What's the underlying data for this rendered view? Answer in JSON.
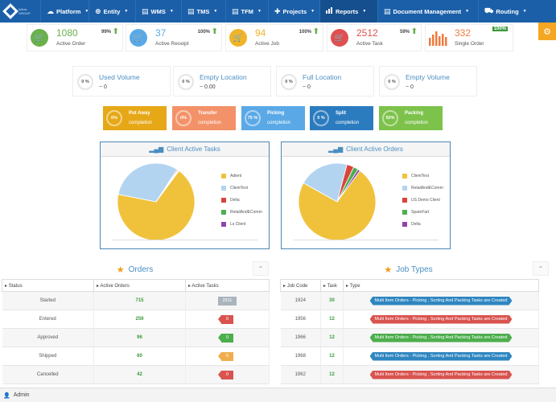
{
  "brand": {
    "line1": "Inflow",
    "line2": "GROUP"
  },
  "nav": [
    {
      "label": "Platform",
      "icon": "cloud-icon",
      "glyph": "☁"
    },
    {
      "label": "Entity",
      "icon": "globe-icon",
      "glyph": "⊕"
    },
    {
      "label": "WMS",
      "icon": "document-icon",
      "glyph": "▤"
    },
    {
      "label": "TMS",
      "icon": "document-icon",
      "glyph": "▤"
    },
    {
      "label": "TFM",
      "icon": "document-icon",
      "glyph": "▤"
    },
    {
      "label": "Projects",
      "icon": "plus-icon",
      "glyph": "✚"
    },
    {
      "label": "Reports",
      "icon": "chart-icon",
      "glyph": ""
    },
    {
      "label": "Document Management",
      "icon": "document-icon",
      "glyph": "▤"
    },
    {
      "label": "Routing",
      "icon": "road-icon",
      "glyph": "⛟"
    }
  ],
  "stats": [
    {
      "value": "1080",
      "label": "Active Order",
      "pct": "99%",
      "color": "#6ab04c"
    },
    {
      "value": "37",
      "label": "Active Receipt",
      "pct": "100%",
      "color": "#5aa9e6"
    },
    {
      "value": "94",
      "label": "Active Job",
      "pct": "100%",
      "color": "#f0b429"
    },
    {
      "value": "2512",
      "label": "Active Task",
      "pct": "59%",
      "color": "#e05050"
    },
    {
      "value": "332",
      "label": "Single Order",
      "pct": "100%",
      "color": "#f07b3f"
    }
  ],
  "volumes": [
    {
      "title": "Used Volume",
      "value": "~ 0",
      "pct": "0 %"
    },
    {
      "title": "Empty Location",
      "value": "~ 0.00",
      "pct": "0 %"
    },
    {
      "title": "Full Location",
      "value": "~ 0",
      "pct": "0 %"
    },
    {
      "title": "Empty Volume",
      "value": "~ 0",
      "pct": "0 %"
    }
  ],
  "tasks": [
    {
      "l1": "Put Away",
      "l2": "completion",
      "pct": "0%",
      "color": "#e6a817"
    },
    {
      "l1": "Transfer",
      "l2": "completion",
      "pct": "0%",
      "color": "#f39268"
    },
    {
      "l1": "Picking",
      "l2": "completion",
      "pct": "75 %",
      "color": "#5aa9e6"
    },
    {
      "l1": "Split",
      "l2": "completion",
      "pct": "0 %",
      "color": "#2b7bbf"
    },
    {
      "l1": "Packing",
      "l2": "completion",
      "pct": "50%",
      "color": "#7dc24b"
    }
  ],
  "charts": {
    "tasks_title": "Client Active Tasks",
    "orders_title": "Client Active Orders"
  },
  "chart_data": [
    {
      "type": "pie",
      "title": "Client Active Tasks",
      "legend": "right",
      "labels": [
        "Adient",
        "ClientTest",
        "Delta",
        "RetailAndEComm",
        "Ls Client"
      ],
      "values": [
        68,
        31,
        0.4,
        0.3,
        0.3
      ],
      "colors": [
        "#f0c23c",
        "#b3d4f0",
        "#d9443a",
        "#4caf50",
        "#8e44ad"
      ]
    },
    {
      "type": "pie",
      "title": "Client Active Orders",
      "legend": "right",
      "labels": [
        "ClientTest",
        "RetailAndEComm",
        "US Demo Client",
        "SpareFart",
        "Delta"
      ],
      "values": [
        73,
        21,
        3,
        2,
        1
      ],
      "colors": [
        "#f0c23c",
        "#b3d4f0",
        "#d9443a",
        "#4caf50",
        "#8e44ad"
      ]
    }
  ],
  "orders": {
    "title": "Orders",
    "headers": [
      "Status",
      "Active Orders",
      "Active Tasks"
    ],
    "rows": [
      {
        "status": "Started",
        "orders": "715",
        "tasks": "2511",
        "tag_color": "#aab4bd"
      },
      {
        "status": "Entered",
        "orders": "259",
        "tasks": "0",
        "tag_color": "#d9534f"
      },
      {
        "status": "Approved",
        "orders": "96",
        "tasks": "0",
        "tag_color": "#4cae4c"
      },
      {
        "status": "Shipped",
        "orders": "60",
        "tasks": "0",
        "tag_color": "#f0ad4e"
      },
      {
        "status": "Cancelled",
        "orders": "42",
        "tasks": "0",
        "tag_color": "#d9534f"
      }
    ]
  },
  "jobs": {
    "title": "Job Types",
    "headers": [
      "Job Code",
      "Task",
      "Type"
    ],
    "rows": [
      {
        "code": "1924",
        "task": "30",
        "type": "Multi Item Orders - Picking , Sorting And Packing Tasks are Created",
        "color": "#2e86c1"
      },
      {
        "code": "1956",
        "task": "12",
        "type": "Multi Item Orders - Picking , Sorting And Packing Tasks are Created",
        "color": "#d9534f"
      },
      {
        "code": "1966",
        "task": "12",
        "type": "Multi Item Orders - Picking , Sorting And Packing Tasks are Created",
        "color": "#4cae4c"
      },
      {
        "code": "1968",
        "task": "12",
        "type": "Multi Item Orders - Picking , Sorting And Packing Tasks are Created",
        "color": "#2e86c1"
      },
      {
        "code": "1962",
        "task": "12",
        "type": "Multi Item Orders - Picking , Sorting And Packing Tasks are Created",
        "color": "#d9534f"
      }
    ]
  },
  "footer": {
    "user": "Admin"
  }
}
